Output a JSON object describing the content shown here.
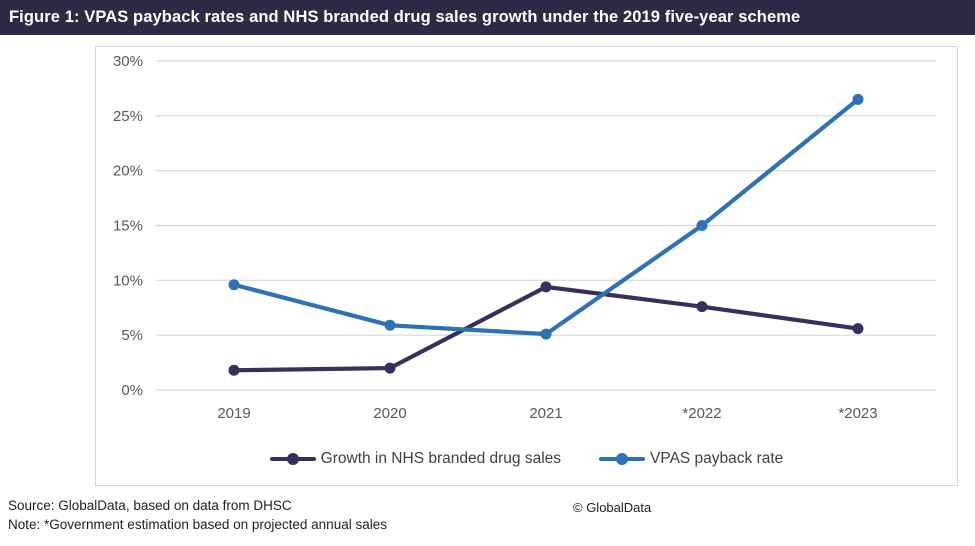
{
  "title_bar": {
    "title": "Figure 1: VPAS payback rates and NHS branded drug sales growth under the 2019 five-year scheme"
  },
  "chart_data": {
    "type": "line",
    "categories": [
      "2019",
      "2020",
      "2021",
      "*2022",
      "*2023"
    ],
    "series": [
      {
        "name": "Growth in NHS branded drug sales",
        "values": [
          1.8,
          2.0,
          9.4,
          7.6,
          5.6
        ],
        "color": "#3a2f5c"
      },
      {
        "name": "VPAS payback rate",
        "values": [
          9.6,
          5.9,
          5.1,
          15.0,
          26.5
        ],
        "color": "#2e71b5"
      }
    ],
    "ylim": [
      0,
      30
    ],
    "ytick_step": 5,
    "ytick_suffix": "%",
    "grid": true,
    "legend_position": "bottom"
  },
  "colors": {
    "title_bar_bg": "#2e2944",
    "gridline": "#d9d9d9",
    "axis_label": "#595959",
    "chart_border": "#d6d6d6",
    "legend_text": "#404040"
  },
  "footer": {
    "source": "Source: GlobalData, based on data from DHSC",
    "note": "Note: *Government estimation based on projected annual sales",
    "copyright": "© GlobalData"
  }
}
